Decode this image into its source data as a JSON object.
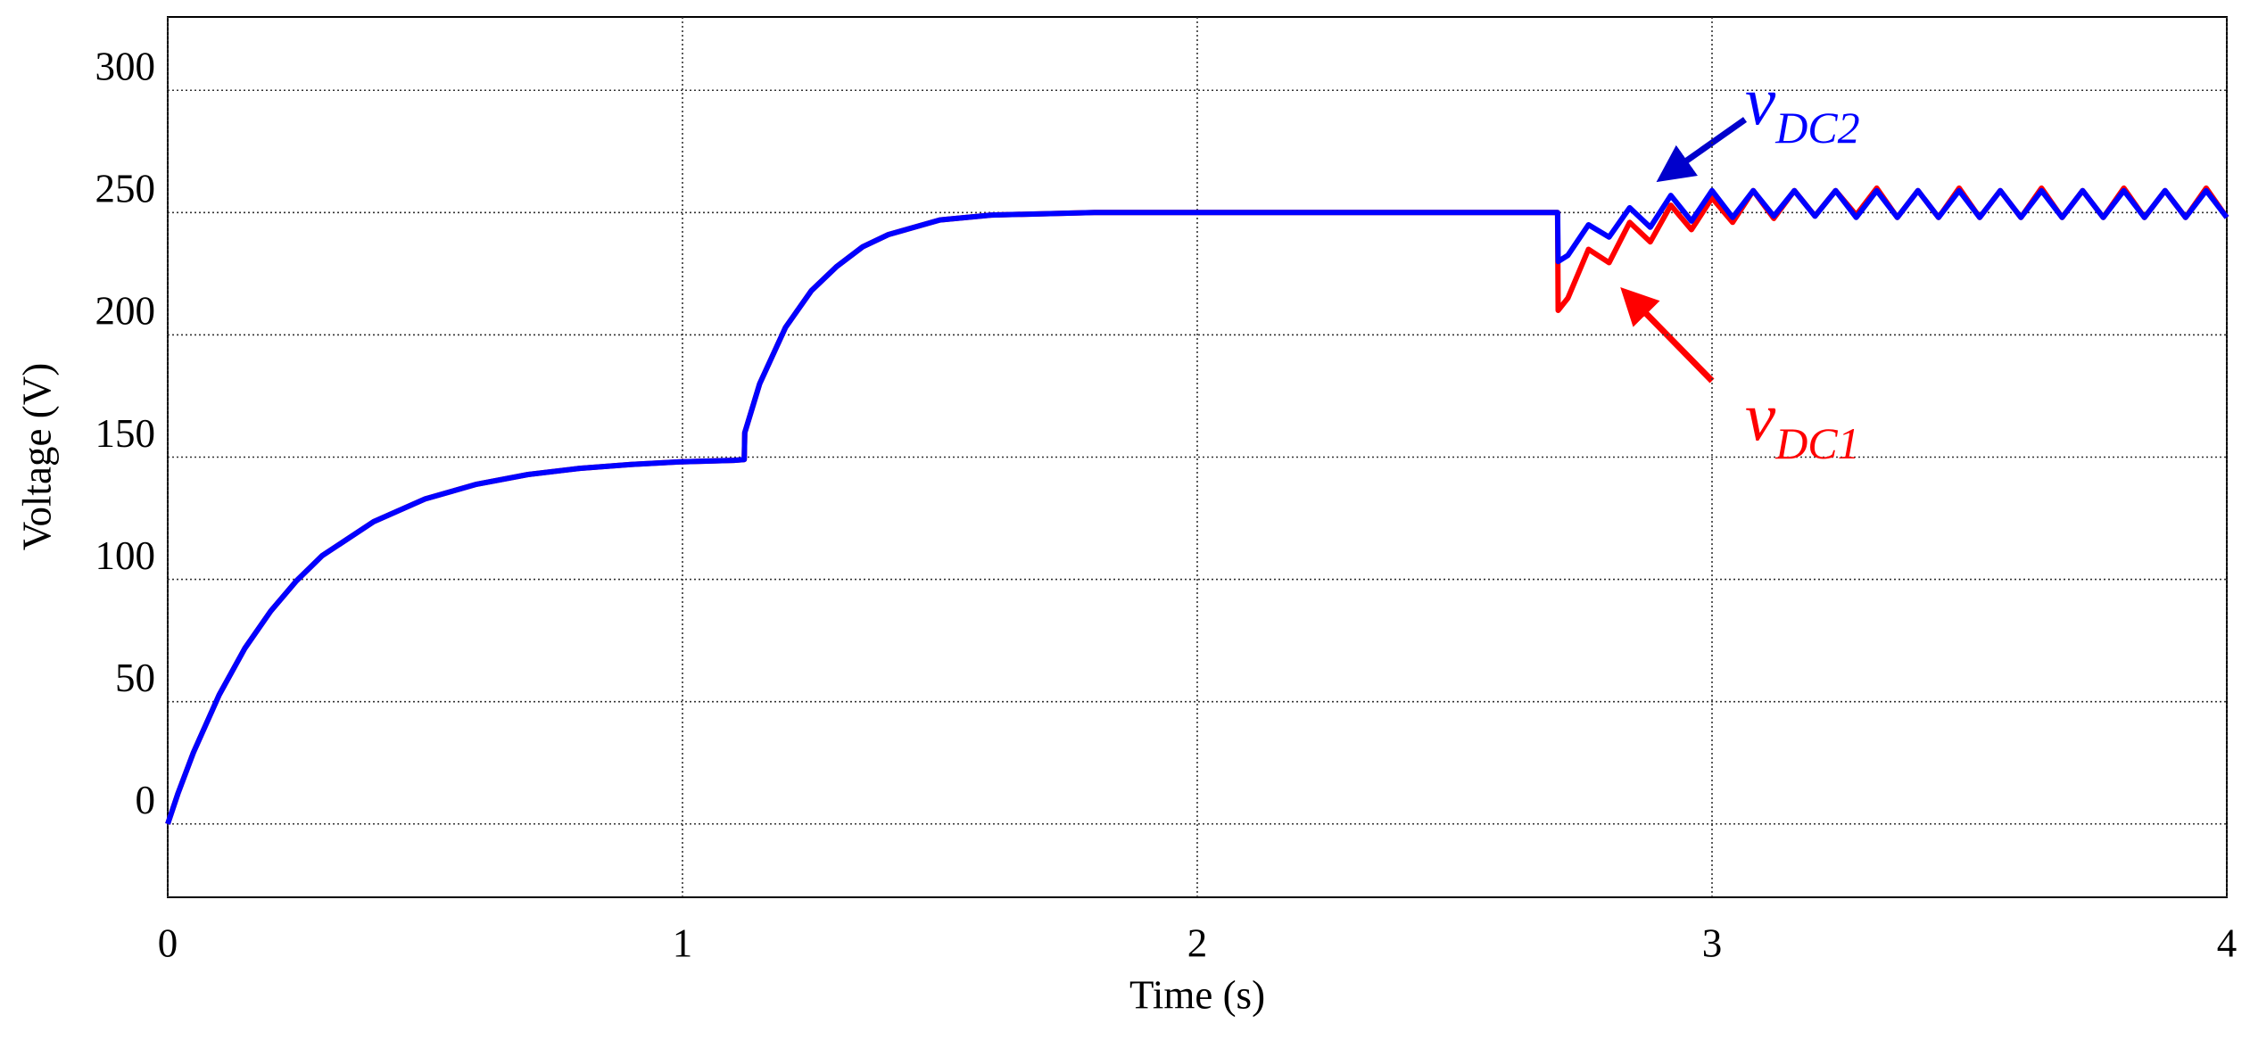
{
  "chart_data": {
    "type": "line",
    "x_label": "Time (s)",
    "y_label": "Voltage (V)",
    "x": [
      0,
      0.02,
      0.05,
      0.1,
      0.15,
      0.2,
      0.25,
      0.3,
      0.4,
      0.5,
      0.6,
      0.7,
      0.8,
      0.9,
      1.0,
      1.1,
      1.12,
      1.121,
      1.15,
      1.2,
      1.25,
      1.3,
      1.35,
      1.4,
      1.5,
      1.6,
      1.8,
      2.0,
      2.4,
      2.7,
      2.701,
      2.72,
      2.76,
      2.8,
      2.84,
      2.88,
      2.92,
      2.96,
      3.0,
      3.04,
      3.08,
      3.12,
      3.16,
      3.2,
      3.24,
      3.28,
      3.32,
      3.36,
      3.4,
      3.44,
      3.48,
      3.52,
      3.56,
      3.6,
      3.64,
      3.68,
      3.72,
      3.76,
      3.8,
      3.84,
      3.88,
      3.92,
      3.96,
      4.0
    ],
    "series": [
      {
        "name": "v",
        "subscript": "DC1",
        "color": "#ff0000",
        "values": [
          0,
          12.5,
          29.2,
          52.8,
          71.9,
          87,
          99.4,
          109.7,
          123.6,
          132.9,
          138.9,
          142.9,
          145.4,
          147,
          148.1,
          148.7,
          149,
          160,
          180,
          203,
          218,
          228,
          236,
          241,
          247,
          249,
          250,
          250,
          250,
          250,
          210,
          215,
          235,
          229.5,
          246,
          238,
          253,
          243,
          256,
          246,
          259,
          247.6,
          259,
          248.6,
          259,
          249,
          260,
          248,
          259,
          248,
          260,
          248,
          259,
          248,
          260,
          248,
          259,
          248,
          260,
          248,
          259,
          248,
          260,
          248
        ]
      },
      {
        "name": "v",
        "subscript": "DC2",
        "color": "#0000ff",
        "values": [
          0,
          12.5,
          29.2,
          52.8,
          71.9,
          87,
          99.4,
          109.7,
          123.6,
          132.9,
          138.9,
          142.9,
          145.4,
          147,
          148.1,
          148.7,
          149,
          160,
          180,
          203,
          218,
          228,
          236,
          241,
          247,
          249,
          250,
          250,
          250,
          250,
          230,
          232.5,
          245,
          240,
          252,
          244,
          257,
          246.5,
          259,
          248,
          259,
          248.5,
          259,
          248.5,
          259,
          248,
          259,
          248,
          259,
          248,
          259,
          248,
          259,
          248,
          259,
          248,
          259,
          248,
          259,
          248,
          259,
          248,
          259,
          248
        ]
      }
    ],
    "xlim": [
      0,
      4
    ],
    "xticks": [
      0,
      1,
      2,
      3,
      4
    ],
    "ylim": [
      -30,
      330
    ],
    "yticks": [
      0,
      50,
      100,
      150,
      200,
      250,
      300
    ],
    "grid": true
  }
}
